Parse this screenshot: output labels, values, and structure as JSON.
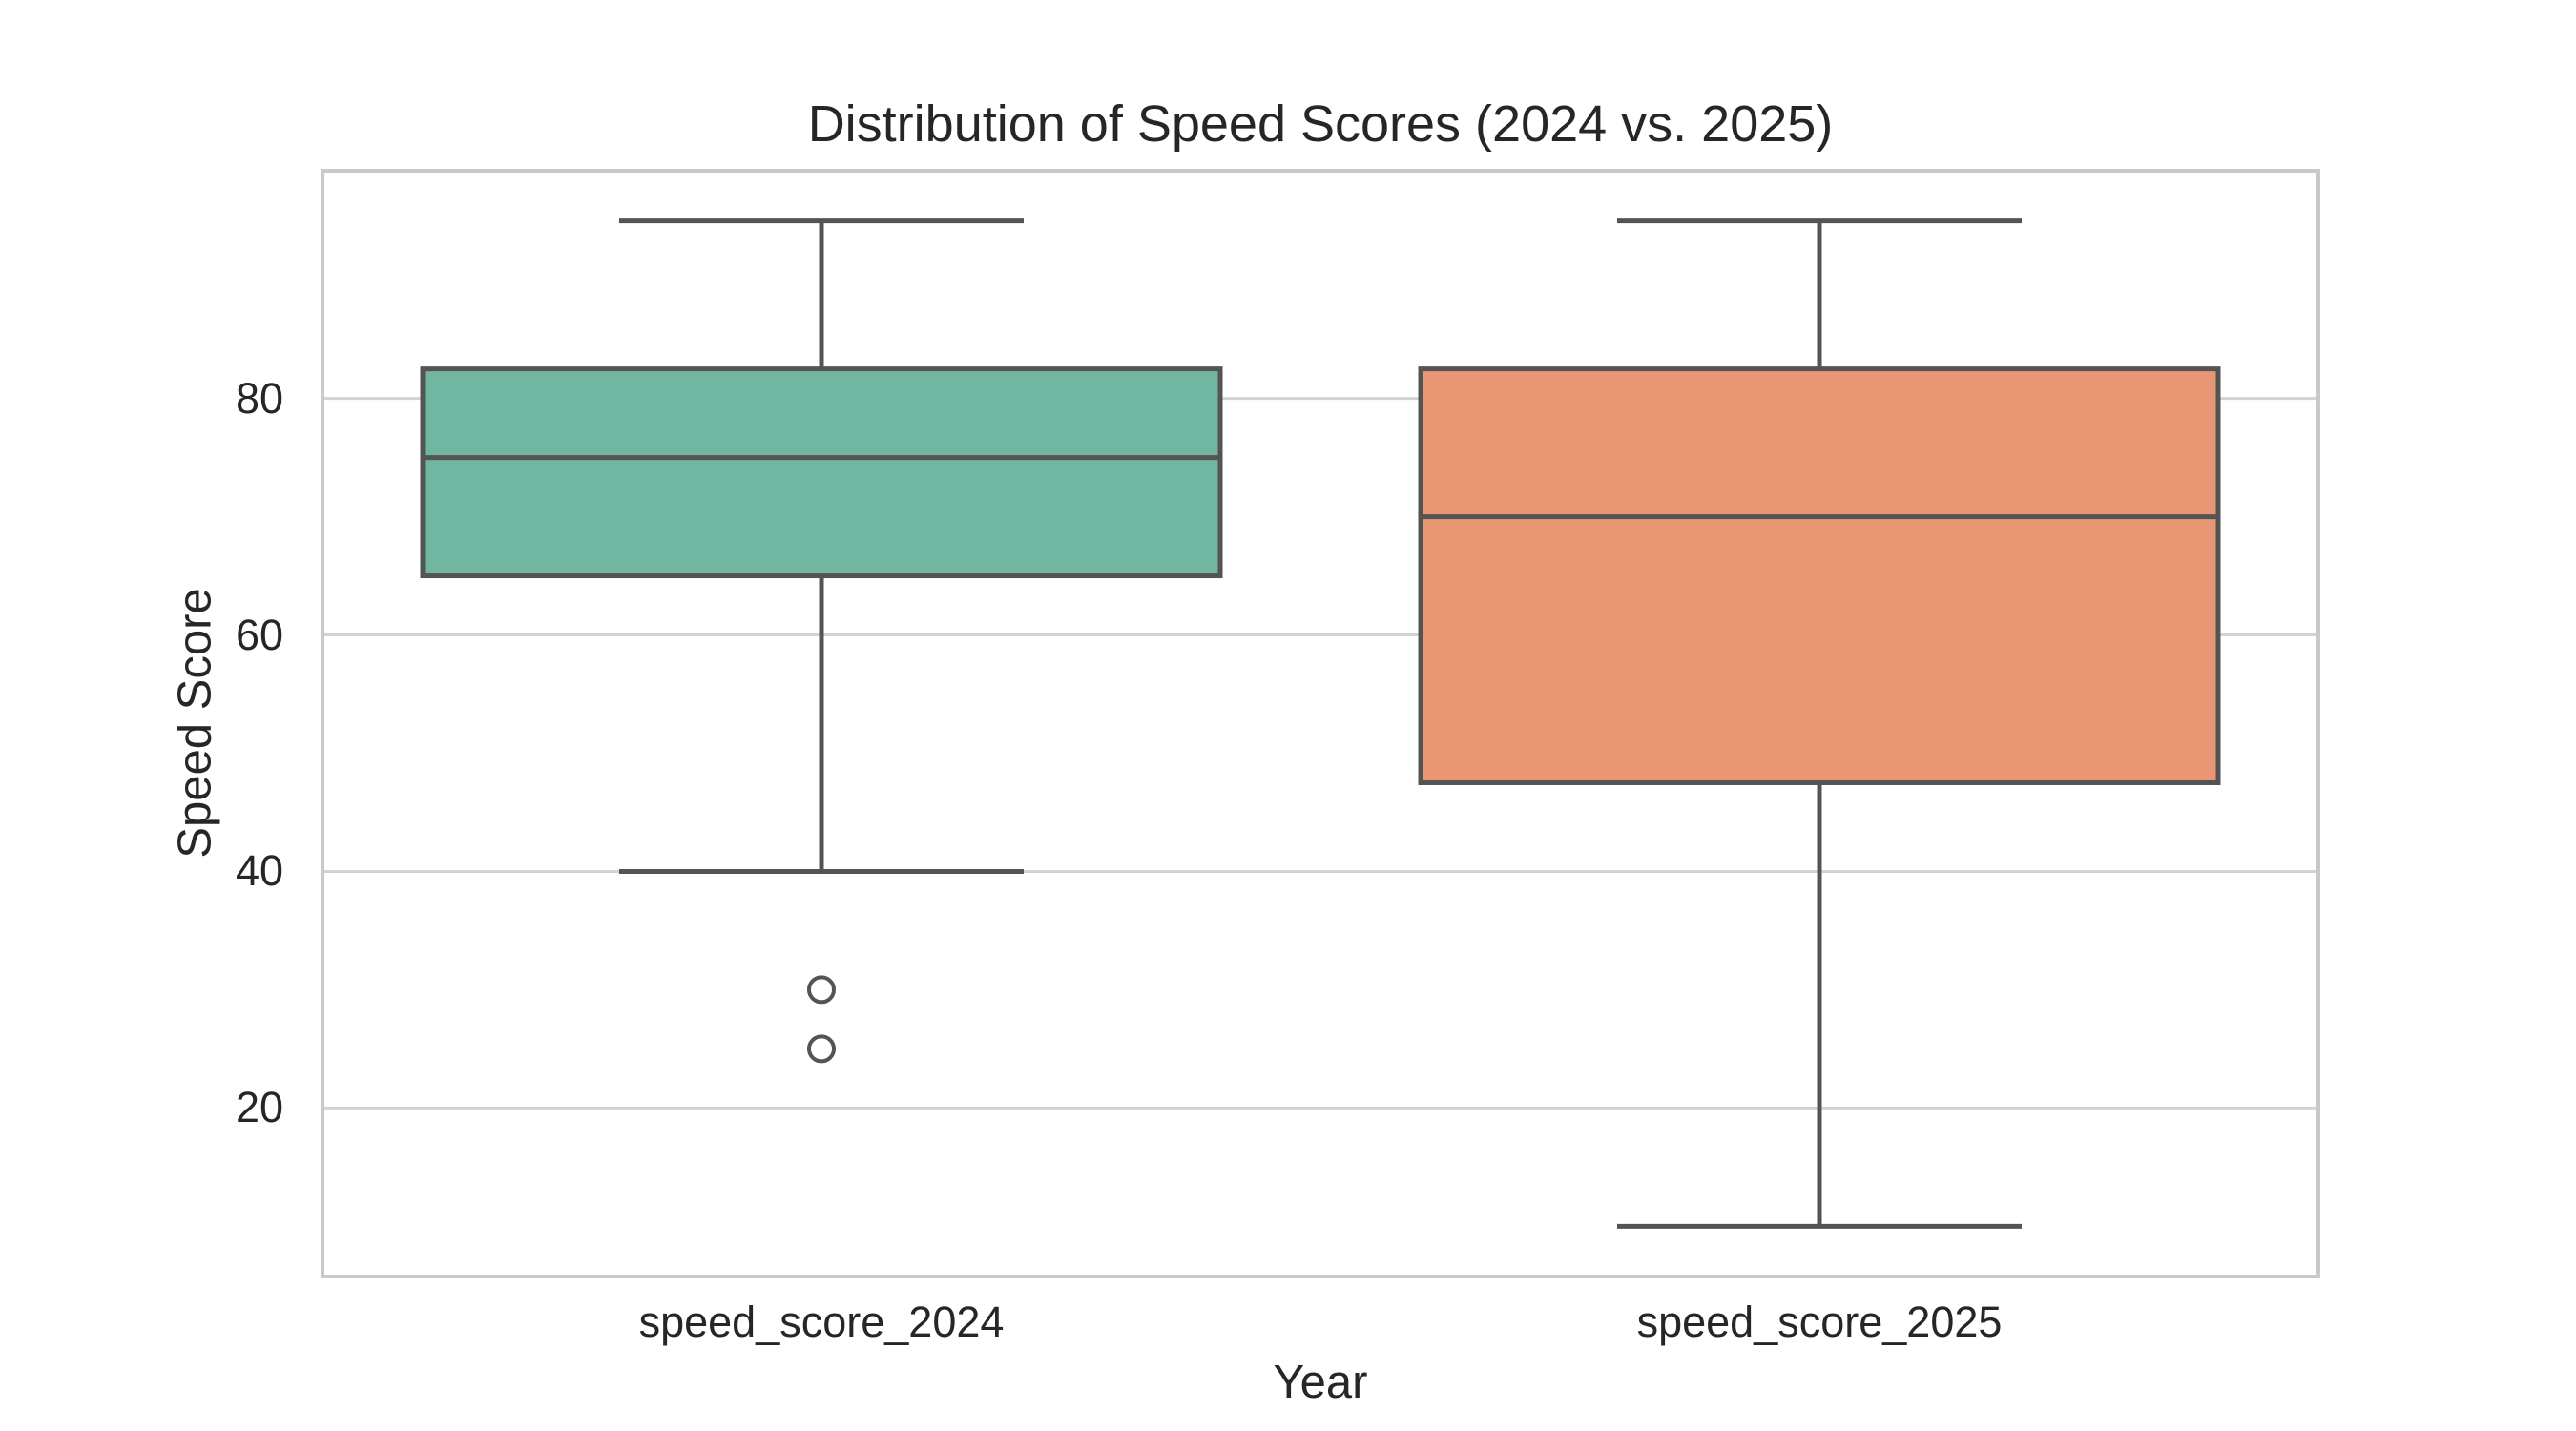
{
  "chart_data": {
    "type": "box",
    "title": "Distribution of Speed Scores (2024 vs. 2025)",
    "xlabel": "Year",
    "ylabel": "Speed Score",
    "categories": [
      "speed_score_2024",
      "speed_score_2025"
    ],
    "ylim": [
      5.75,
      99.25
    ],
    "yticks": [
      20,
      40,
      60,
      80
    ],
    "grid": true,
    "legend": "none",
    "series": [
      {
        "name": "speed_score_2024",
        "whisker_low": 40,
        "q1": 65,
        "median": 75,
        "q3": 82.5,
        "whisker_high": 95,
        "outliers": [
          30,
          25
        ],
        "fill_color": "#71b6a0"
      },
      {
        "name": "speed_score_2025",
        "whisker_low": 10,
        "q1": 47.5,
        "median": 70,
        "q3": 82.5,
        "whisker_high": 95,
        "outliers": [],
        "fill_color": "#e99675"
      }
    ],
    "colors": {
      "box_edge": "#545454",
      "grid": "#d2d2d2",
      "spine": "#c9c9c9",
      "text": "#262626",
      "background": "#ffffff"
    }
  }
}
